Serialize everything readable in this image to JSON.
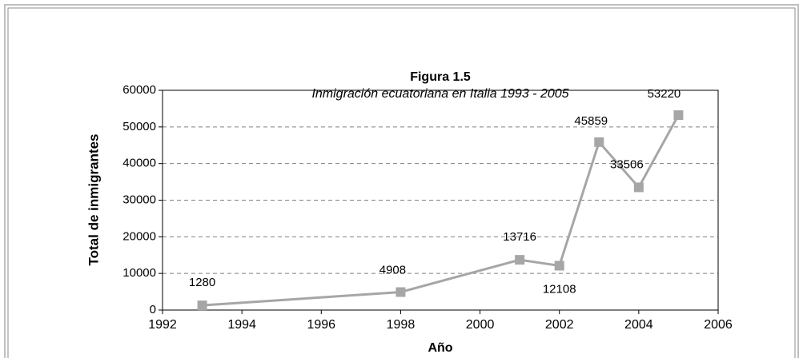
{
  "chart_data": {
    "type": "line",
    "title": "Figura 1.5",
    "subtitle": "Inmigración ecuatoriana en Italia 1993 - 2005",
    "x_label": "Año",
    "y_label": "Total de inmigrantes",
    "x": [
      1993,
      1998,
      2001,
      2002,
      2003,
      2004,
      2005
    ],
    "values": [
      1280,
      4908,
      13716,
      12108,
      45859,
      33506,
      53220
    ],
    "color": "#a6a6a6",
    "xlim": [
      1992,
      2006
    ],
    "xticks": [
      1992,
      1994,
      1996,
      1998,
      2000,
      2002,
      2004,
      2006
    ],
    "ylim": [
      0,
      60000
    ],
    "yticks": [
      0,
      10000,
      20000,
      30000,
      40000,
      50000,
      60000
    ],
    "grid": true
  }
}
